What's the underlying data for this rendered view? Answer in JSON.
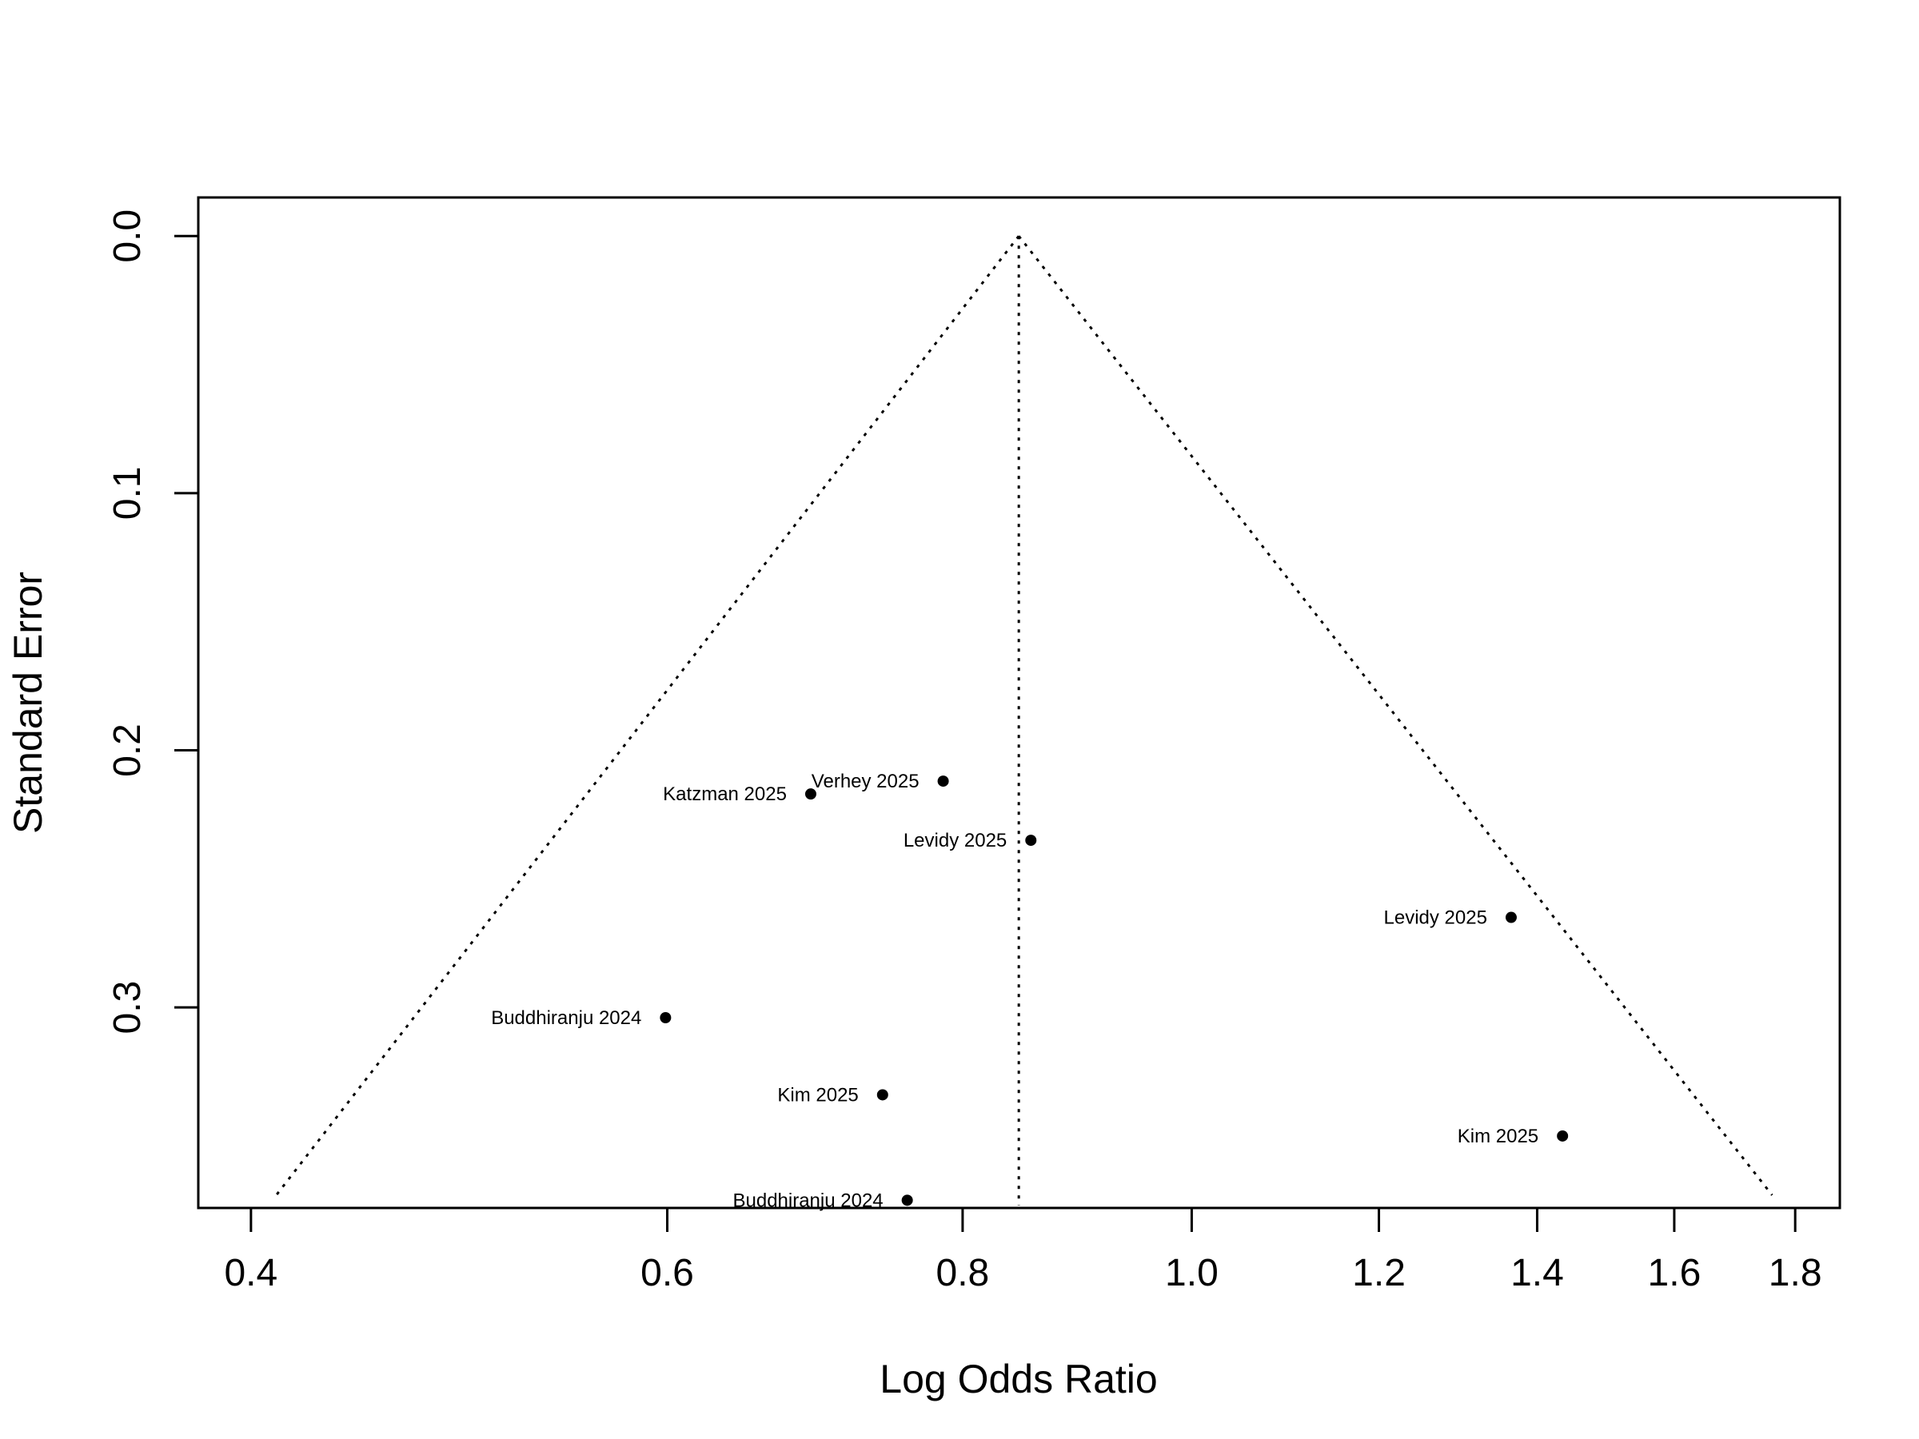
{
  "chart_data": {
    "type": "scatter",
    "title": "",
    "xlabel": "Log Odds Ratio",
    "ylabel": "Standard Error",
    "x_scale": "log",
    "x_ticks": [
      0.4,
      0.6,
      0.8,
      1.0,
      1.2,
      1.4,
      1.6,
      1.8
    ],
    "x_tick_labels": [
      "0.4",
      "0.6",
      "0.8",
      "1.0",
      "1.2",
      "1.4",
      "1.6",
      "1.8"
    ],
    "y_ticks": [
      0.0,
      0.1,
      0.2,
      0.3
    ],
    "y_tick_labels": [
      "0.0",
      "0.1",
      "0.2",
      "0.3"
    ],
    "y_reversed": true,
    "xlim": [
      0.38,
      1.88
    ],
    "ylim": [
      0.378,
      -0.015
    ],
    "grid": false,
    "reference_line": {
      "x": 0.845,
      "style": "dotted"
    },
    "funnel": {
      "apex_x": 0.845,
      "apex_se": 0.0,
      "base_se": 0.373,
      "left_x": 0.41,
      "right_x": 1.76,
      "style": "dotted"
    },
    "points": [
      {
        "label": "Verhey 2025",
        "x": 0.785,
        "se": 0.212
      },
      {
        "label": "Katzman 2025",
        "x": 0.69,
        "se": 0.217
      },
      {
        "label": "Levidy 2025",
        "x": 0.855,
        "se": 0.235
      },
      {
        "label": "Levidy 2025",
        "x": 1.365,
        "se": 0.265
      },
      {
        "label": "Buddhiranju 2024",
        "x": 0.599,
        "se": 0.304
      },
      {
        "label": "Kim 2025",
        "x": 0.74,
        "se": 0.334
      },
      {
        "label": "Kim 2025",
        "x": 1.435,
        "se": 0.35
      },
      {
        "label": "Buddhiranju 2024",
        "x": 0.758,
        "se": 0.375
      }
    ]
  }
}
